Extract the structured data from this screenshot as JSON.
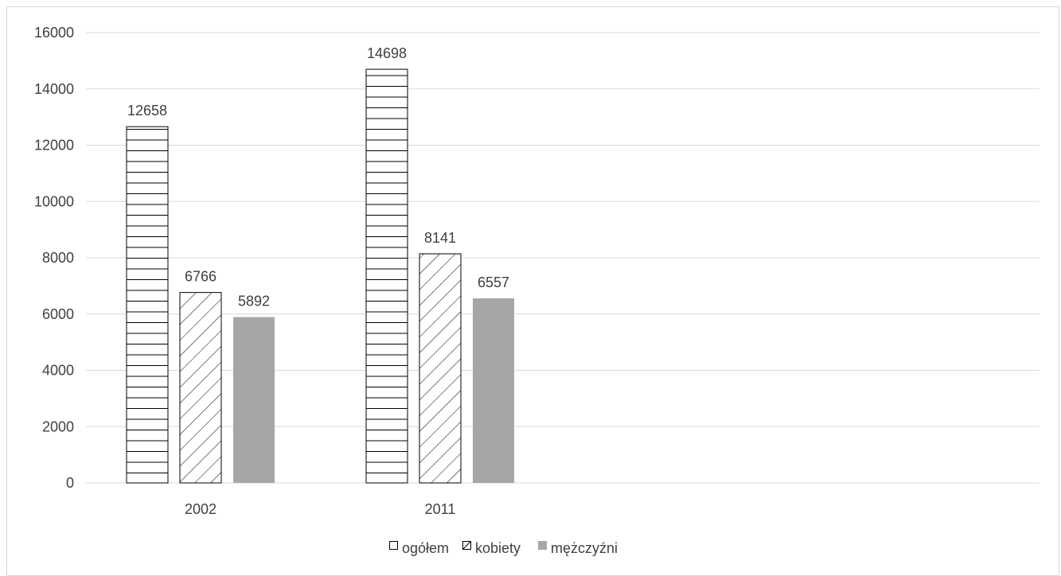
{
  "chart_data": {
    "type": "bar",
    "categories": [
      "2002",
      "2011"
    ],
    "series": [
      {
        "name": "ogółem",
        "values": [
          12658,
          14698
        ],
        "pattern": "horizontal-lines"
      },
      {
        "name": "kobiety",
        "values": [
          6766,
          8141
        ],
        "pattern": "diagonal-lines"
      },
      {
        "name": "mężczyźni",
        "values": [
          5892,
          6557
        ],
        "pattern": "solid",
        "color": "#a6a6a6"
      }
    ],
    "y_ticks": [
      "0",
      "2000",
      "4000",
      "6000",
      "8000",
      "10000",
      "12000",
      "14000",
      "16000"
    ],
    "ylim": [
      0,
      16000
    ],
    "grid": true,
    "legend_position": "bottom",
    "colors": {
      "grid": "#d9d9d9",
      "bar_stroke": "#000000",
      "text": "#404040",
      "solid_bar": "#a6a6a6"
    }
  }
}
